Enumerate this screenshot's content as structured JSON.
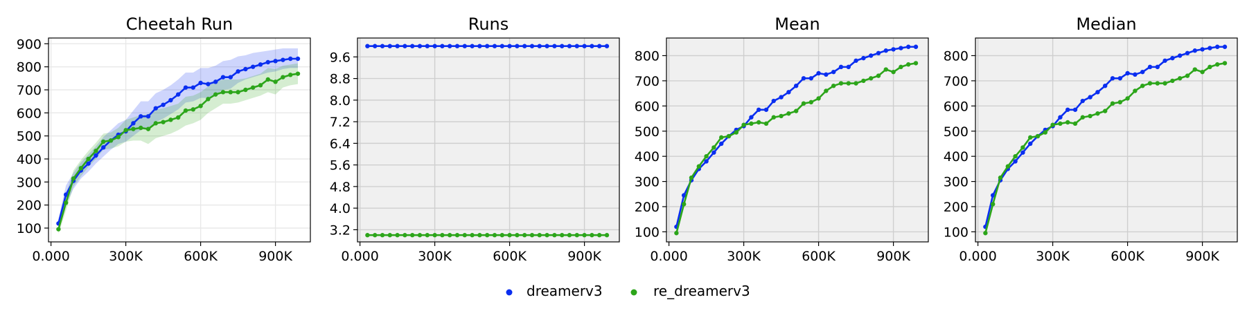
{
  "colors": {
    "dreamerv3": "#0a2ef0",
    "re_dreamerv3": "#2ca51a"
  },
  "legend": [
    {
      "label": "dreamerv3",
      "color": "#0a2ef0"
    },
    {
      "label": "re_dreamerv3",
      "color": "#2ca51a"
    }
  ],
  "chart_data": [
    {
      "type": "line",
      "title": "Cheetah Run",
      "background": "#ffffff",
      "grid": true,
      "xlim": [
        -10000,
        1040000
      ],
      "ylim": [
        40,
        925
      ],
      "xticks": [
        0,
        300000,
        600000,
        900000
      ],
      "xtick_labels": [
        "0.000",
        "300K",
        "600K",
        "900K"
      ],
      "yticks": [
        100,
        200,
        300,
        400,
        500,
        600,
        700,
        800,
        900
      ],
      "ytick_labels": [
        "100",
        "200",
        "300",
        "400",
        "500",
        "600",
        "700",
        "800",
        "900"
      ],
      "x": [
        30000,
        60000,
        90000,
        120000,
        150000,
        180000,
        210000,
        240000,
        270000,
        300000,
        330000,
        360000,
        390000,
        420000,
        450000,
        480000,
        510000,
        540000,
        570000,
        600000,
        630000,
        660000,
        690000,
        720000,
        750000,
        780000,
        810000,
        840000,
        870000,
        900000,
        930000,
        960000,
        990000
      ],
      "series": [
        {
          "name": "dreamerv3",
          "color": "#0a2ef0",
          "values": [
            120,
            245,
            305,
            350,
            380,
            415,
            450,
            480,
            505,
            520,
            555,
            585,
            585,
            620,
            635,
            655,
            680,
            710,
            710,
            730,
            725,
            735,
            755,
            755,
            780,
            790,
            800,
            810,
            820,
            825,
            830,
            835,
            835
          ],
          "band_low": [
            100,
            200,
            270,
            315,
            345,
            380,
            410,
            440,
            465,
            475,
            500,
            525,
            535,
            560,
            575,
            595,
            615,
            645,
            650,
            665,
            665,
            680,
            700,
            705,
            730,
            745,
            755,
            765,
            775,
            780,
            790,
            795,
            795
          ],
          "band_high": [
            140,
            285,
            340,
            385,
            420,
            455,
            495,
            525,
            555,
            570,
            610,
            650,
            650,
            685,
            700,
            720,
            745,
            775,
            775,
            795,
            795,
            805,
            825,
            830,
            845,
            850,
            860,
            865,
            870,
            875,
            880,
            880,
            880
          ]
        },
        {
          "name": "re_dreamerv3",
          "color": "#2ca51a",
          "values": [
            95,
            210,
            315,
            360,
            400,
            435,
            475,
            480,
            495,
            525,
            530,
            535,
            530,
            555,
            560,
            570,
            580,
            610,
            615,
            630,
            660,
            680,
            690,
            690,
            690,
            700,
            710,
            720,
            745,
            735,
            755,
            765,
            770
          ],
          "band_low": [
            75,
            175,
            280,
            325,
            365,
            400,
            440,
            445,
            455,
            475,
            480,
            480,
            465,
            490,
            500,
            510,
            525,
            545,
            555,
            570,
            600,
            620,
            640,
            640,
            645,
            655,
            665,
            675,
            690,
            680,
            710,
            720,
            725
          ],
          "band_high": [
            115,
            245,
            350,
            395,
            435,
            470,
            510,
            515,
            535,
            570,
            580,
            590,
            595,
            615,
            620,
            630,
            640,
            670,
            675,
            690,
            715,
            735,
            745,
            745,
            745,
            750,
            760,
            770,
            795,
            790,
            805,
            810,
            815
          ]
        }
      ]
    },
    {
      "type": "line",
      "title": "Runs",
      "background": "#f0f0f0",
      "grid": true,
      "xlim": [
        -10000,
        1040000
      ],
      "ylim": [
        2.75,
        10.3
      ],
      "xticks": [
        0,
        300000,
        600000,
        900000
      ],
      "xtick_labels": [
        "0.000",
        "300K",
        "600K",
        "900K"
      ],
      "yticks": [
        3.2,
        4.0,
        4.8,
        5.6,
        6.4,
        7.2,
        8.0,
        8.8,
        9.6
      ],
      "ytick_labels": [
        "3.2",
        "4.0",
        "4.8",
        "5.6",
        "6.4",
        "7.2",
        "8.0",
        "8.8",
        "9.6"
      ],
      "x": [
        30000,
        60000,
        90000,
        120000,
        150000,
        180000,
        210000,
        240000,
        270000,
        300000,
        330000,
        360000,
        390000,
        420000,
        450000,
        480000,
        510000,
        540000,
        570000,
        600000,
        630000,
        660000,
        690000,
        720000,
        750000,
        780000,
        810000,
        840000,
        870000,
        900000,
        930000,
        960000,
        990000
      ],
      "series": [
        {
          "name": "dreamerv3",
          "color": "#0a2ef0",
          "values": [
            10,
            10,
            10,
            10,
            10,
            10,
            10,
            10,
            10,
            10,
            10,
            10,
            10,
            10,
            10,
            10,
            10,
            10,
            10,
            10,
            10,
            10,
            10,
            10,
            10,
            10,
            10,
            10,
            10,
            10,
            10,
            10,
            10
          ]
        },
        {
          "name": "re_dreamerv3",
          "color": "#2ca51a",
          "values": [
            3,
            3,
            3,
            3,
            3,
            3,
            3,
            3,
            3,
            3,
            3,
            3,
            3,
            3,
            3,
            3,
            3,
            3,
            3,
            3,
            3,
            3,
            3,
            3,
            3,
            3,
            3,
            3,
            3,
            3,
            3,
            3,
            3
          ]
        }
      ]
    },
    {
      "type": "line",
      "title": "Mean",
      "background": "#f0f0f0",
      "grid": true,
      "xlim": [
        -10000,
        1040000
      ],
      "ylim": [
        60,
        870
      ],
      "xticks": [
        0,
        300000,
        600000,
        900000
      ],
      "xtick_labels": [
        "0.000",
        "300K",
        "600K",
        "900K"
      ],
      "yticks": [
        100,
        200,
        300,
        400,
        500,
        600,
        700,
        800
      ],
      "ytick_labels": [
        "100",
        "200",
        "300",
        "400",
        "500",
        "600",
        "700",
        "800"
      ],
      "x": [
        30000,
        60000,
        90000,
        120000,
        150000,
        180000,
        210000,
        240000,
        270000,
        300000,
        330000,
        360000,
        390000,
        420000,
        450000,
        480000,
        510000,
        540000,
        570000,
        600000,
        630000,
        660000,
        690000,
        720000,
        750000,
        780000,
        810000,
        840000,
        870000,
        900000,
        930000,
        960000,
        990000
      ],
      "series": [
        {
          "name": "dreamerv3",
          "color": "#0a2ef0",
          "values": [
            120,
            245,
            305,
            350,
            380,
            415,
            450,
            480,
            505,
            520,
            555,
            585,
            585,
            620,
            635,
            655,
            680,
            710,
            710,
            730,
            725,
            735,
            755,
            755,
            780,
            790,
            800,
            810,
            820,
            825,
            830,
            835,
            835
          ]
        },
        {
          "name": "re_dreamerv3",
          "color": "#2ca51a",
          "values": [
            95,
            210,
            315,
            360,
            400,
            435,
            475,
            480,
            495,
            525,
            530,
            535,
            530,
            555,
            560,
            570,
            580,
            610,
            615,
            630,
            660,
            680,
            690,
            690,
            690,
            700,
            710,
            720,
            745,
            735,
            755,
            765,
            770
          ]
        }
      ]
    },
    {
      "type": "line",
      "title": "Median",
      "background": "#f0f0f0",
      "grid": true,
      "xlim": [
        -10000,
        1040000
      ],
      "ylim": [
        60,
        870
      ],
      "xticks": [
        0,
        300000,
        600000,
        900000
      ],
      "xtick_labels": [
        "0.000",
        "300K",
        "600K",
        "900K"
      ],
      "yticks": [
        100,
        200,
        300,
        400,
        500,
        600,
        700,
        800
      ],
      "ytick_labels": [
        "100",
        "200",
        "300",
        "400",
        "500",
        "600",
        "700",
        "800"
      ],
      "x": [
        30000,
        60000,
        90000,
        120000,
        150000,
        180000,
        210000,
        240000,
        270000,
        300000,
        330000,
        360000,
        390000,
        420000,
        450000,
        480000,
        510000,
        540000,
        570000,
        600000,
        630000,
        660000,
        690000,
        720000,
        750000,
        780000,
        810000,
        840000,
        870000,
        900000,
        930000,
        960000,
        990000
      ],
      "series": [
        {
          "name": "dreamerv3",
          "color": "#0a2ef0",
          "values": [
            120,
            245,
            305,
            350,
            380,
            415,
            450,
            480,
            505,
            520,
            555,
            585,
            585,
            620,
            635,
            655,
            680,
            710,
            710,
            730,
            725,
            735,
            755,
            755,
            780,
            790,
            800,
            810,
            820,
            825,
            830,
            835,
            835
          ]
        },
        {
          "name": "re_dreamerv3",
          "color": "#2ca51a",
          "values": [
            95,
            210,
            315,
            360,
            400,
            435,
            475,
            480,
            495,
            525,
            530,
            535,
            530,
            555,
            560,
            570,
            580,
            610,
            615,
            630,
            660,
            680,
            690,
            690,
            690,
            700,
            710,
            720,
            745,
            735,
            755,
            765,
            770
          ]
        }
      ]
    }
  ]
}
